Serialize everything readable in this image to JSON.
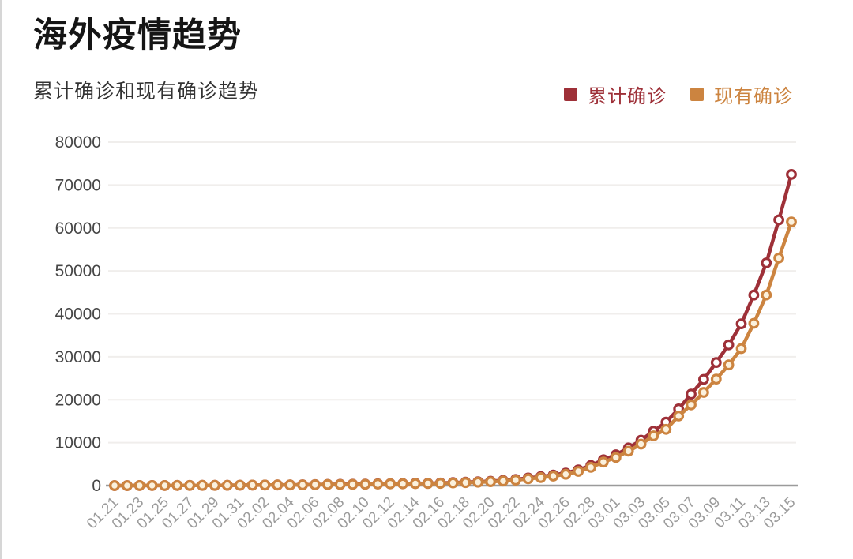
{
  "header": {
    "title": "海外疫情趋势",
    "subtitle": "累计确诊和现有确诊趋势"
  },
  "colors": {
    "background": "#ffffff",
    "title_text": "#151515",
    "subtitle_text": "#333333",
    "grid_line": "#f0eeec",
    "axis_line": "#9b9b9b",
    "y_tick_label": "#464646",
    "x_tick_label": "#9b9b9b",
    "series_cumulative": "#9e3038",
    "series_existing": "#cc8440"
  },
  "chart_data": {
    "type": "line",
    "title": "海外疫情趋势",
    "subtitle": "累计确诊和现有确诊趋势",
    "grid": true,
    "legend_position": "top-right",
    "ylim": [
      0,
      80000
    ],
    "y_ticks": [
      0,
      10000,
      20000,
      30000,
      40000,
      50000,
      60000,
      70000,
      80000
    ],
    "x_label_every": 2,
    "x_labels_shown": [
      "01.21",
      "01.23",
      "01.25",
      "01.27",
      "01.29",
      "01.31",
      "02.02",
      "02.04",
      "02.06",
      "02.08",
      "02.10",
      "02.12",
      "02.14",
      "02.16",
      "02.18",
      "02.20",
      "02.22",
      "02.24",
      "02.26",
      "02.28",
      "03.01",
      "03.03",
      "03.05",
      "03.07",
      "03.09",
      "03.11",
      "03.13",
      "03.15"
    ],
    "categories": [
      "01.21",
      "01.22",
      "01.23",
      "01.24",
      "01.25",
      "01.26",
      "01.27",
      "01.28",
      "01.29",
      "01.30",
      "01.31",
      "02.01",
      "02.02",
      "02.03",
      "02.04",
      "02.05",
      "02.06",
      "02.07",
      "02.08",
      "02.09",
      "02.10",
      "02.11",
      "02.12",
      "02.13",
      "02.14",
      "02.15",
      "02.16",
      "02.17",
      "02.18",
      "02.19",
      "02.20",
      "02.21",
      "02.22",
      "02.23",
      "02.24",
      "02.25",
      "02.26",
      "02.27",
      "02.28",
      "02.29",
      "03.01",
      "03.02",
      "03.03",
      "03.04",
      "03.05",
      "03.06",
      "03.07",
      "03.08",
      "03.09",
      "03.10",
      "03.11",
      "03.12",
      "03.13",
      "03.14",
      "03.15"
    ],
    "series": [
      {
        "name": "累计确诊",
        "color": "#9e3038",
        "marker_fill": "#ffffff",
        "values": [
          4,
          8,
          12,
          16,
          23,
          32,
          40,
          50,
          60,
          72,
          90,
          106,
          132,
          148,
          158,
          183,
          219,
          270,
          288,
          307,
          330,
          399,
          445,
          467,
          510,
          530,
          585,
          700,
          790,
          900,
          1015,
          1200,
          1420,
          1770,
          2070,
          2460,
          2920,
          3660,
          4690,
          6010,
          7170,
          8770,
          10570,
          12670,
          14770,
          17860,
          21300,
          24730,
          28670,
          32780,
          37680,
          44380,
          51860,
          61890,
          72470
        ]
      },
      {
        "name": "现有确诊",
        "color": "#cc8440",
        "marker_fill": "#fbf1dd",
        "values": [
          4,
          8,
          12,
          16,
          22,
          31,
          39,
          48,
          58,
          70,
          87,
          102,
          127,
          141,
          149,
          172,
          204,
          252,
          266,
          281,
          299,
          361,
          401,
          417,
          457,
          470,
          516,
          622,
          700,
          798,
          898,
          1065,
          1262,
          1580,
          1855,
          2210,
          2630,
          3310,
          4250,
          5480,
          6550,
          8010,
          9660,
          11580,
          13100,
          16200,
          18800,
          21700,
          24800,
          28100,
          31900,
          37800,
          44400,
          53000,
          61400
        ]
      }
    ]
  }
}
